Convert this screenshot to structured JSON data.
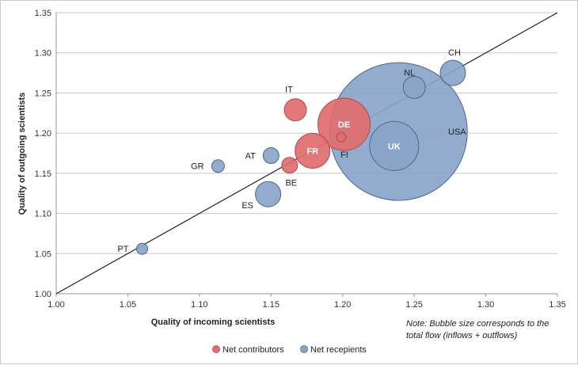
{
  "chart_data": {
    "type": "scatter",
    "subtype": "bubble",
    "xlabel": "Quality of incoming scientists",
    "ylabel": "Quality of outgoing scientists",
    "xlim": [
      1.0,
      1.35
    ],
    "ylim": [
      1.0,
      1.35
    ],
    "x_ticks": [
      "1.00",
      "1.05",
      "1.10",
      "1.15",
      "1.20",
      "1.25",
      "1.30",
      "1.35"
    ],
    "y_ticks": [
      "1.00",
      "1.05",
      "1.10",
      "1.15",
      "1.20",
      "1.25",
      "1.30",
      "1.35"
    ],
    "grid": "horizontal",
    "reference_line": {
      "from": [
        1.0,
        1.0
      ],
      "to": [
        1.35,
        1.35
      ]
    },
    "note": [
      "Note: Bubble size corresponds to the",
      "total flow (inflows + outflows)"
    ],
    "legend_position": "bottom",
    "series": [
      {
        "name": "Net contributors",
        "color": "#e06c6f",
        "points": [
          {
            "label": "IT",
            "x": 1.167,
            "y": 1.229,
            "size": 196
          },
          {
            "label": "DE",
            "x": 1.201,
            "y": 1.211,
            "size": 1089
          },
          {
            "label": "FR",
            "x": 1.179,
            "y": 1.178,
            "size": 484
          },
          {
            "label": "FI",
            "x": 1.199,
            "y": 1.195,
            "size": 36
          },
          {
            "label": "BE",
            "x": 1.163,
            "y": 1.16,
            "size": 100
          }
        ]
      },
      {
        "name": "Net recepients",
        "color": "#8aa4c8",
        "points": [
          {
            "label": "CH",
            "x": 1.277,
            "y": 1.275,
            "size": 256
          },
          {
            "label": "NL",
            "x": 1.25,
            "y": 1.257,
            "size": 196
          },
          {
            "label": "USA",
            "x": 1.239,
            "y": 1.202,
            "size": 7569
          },
          {
            "label": "UK",
            "x": 1.236,
            "y": 1.184,
            "size": 961
          },
          {
            "label": "AT",
            "x": 1.15,
            "y": 1.172,
            "size": 100
          },
          {
            "label": "GR",
            "x": 1.113,
            "y": 1.159,
            "size": 64
          },
          {
            "label": "ES",
            "x": 1.148,
            "y": 1.124,
            "size": 256
          },
          {
            "label": "PT",
            "x": 1.06,
            "y": 1.056,
            "size": 49
          }
        ]
      }
    ]
  }
}
